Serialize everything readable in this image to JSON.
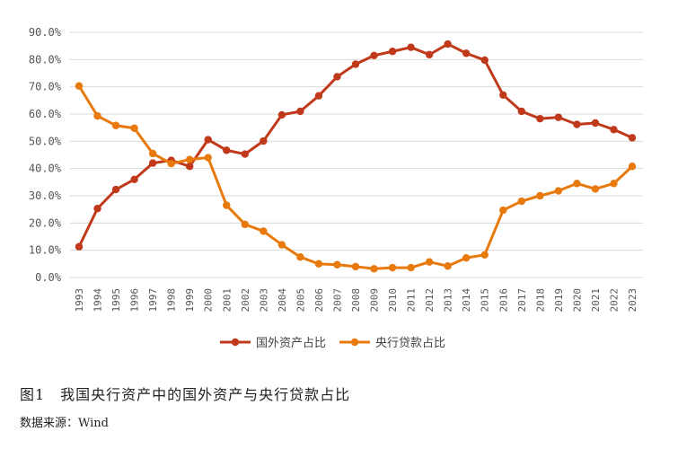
{
  "chart_data": {
    "type": "line",
    "title": "",
    "xlabel": "",
    "ylabel": "",
    "ylim": [
      0,
      90
    ],
    "yticks": [
      "0.0%",
      "10.0%",
      "20.0%",
      "30.0%",
      "40.0%",
      "50.0%",
      "60.0%",
      "70.0%",
      "80.0%",
      "90.0%"
    ],
    "x": [
      "1993",
      "1994",
      "1995",
      "1996",
      "1997",
      "1998",
      "1999",
      "2000",
      "2001",
      "2002",
      "2003",
      "2004",
      "2005",
      "2006",
      "2007",
      "2008",
      "2009",
      "2010",
      "2011",
      "2012",
      "2013",
      "2014",
      "2015",
      "2016",
      "2017",
      "2018",
      "2019",
      "2020",
      "2021",
      "2022",
      "2023"
    ],
    "grid": true,
    "legend": "bottom",
    "series": [
      {
        "name": "国外资产占比",
        "color": "#C0391B",
        "values": [
          11.3,
          25.3,
          32.3,
          36.0,
          42.0,
          43.0,
          40.8,
          50.6,
          46.7,
          45.3,
          50.1,
          59.7,
          61.0,
          66.7,
          73.7,
          78.3,
          81.5,
          83.0,
          84.5,
          81.8,
          85.7,
          82.3,
          79.8,
          67.0,
          61.0,
          58.3,
          58.8,
          56.2,
          56.7,
          54.3,
          51.3
        ]
      },
      {
        "name": "央行贷款占比",
        "color": "#E8790C",
        "values": [
          70.3,
          59.3,
          55.8,
          54.8,
          45.5,
          41.8,
          43.3,
          44.0,
          26.5,
          19.5,
          17.0,
          12.0,
          7.5,
          5.0,
          4.7,
          4.0,
          3.2,
          3.6,
          3.6,
          5.7,
          4.2,
          7.2,
          8.3,
          24.7,
          28.0,
          30.0,
          31.8,
          34.5,
          32.5,
          34.5,
          40.8
        ]
      }
    ]
  },
  "caption": "图1　我国央行资产中的国外资产与央行贷款占比",
  "source": "数据来源：Wind"
}
